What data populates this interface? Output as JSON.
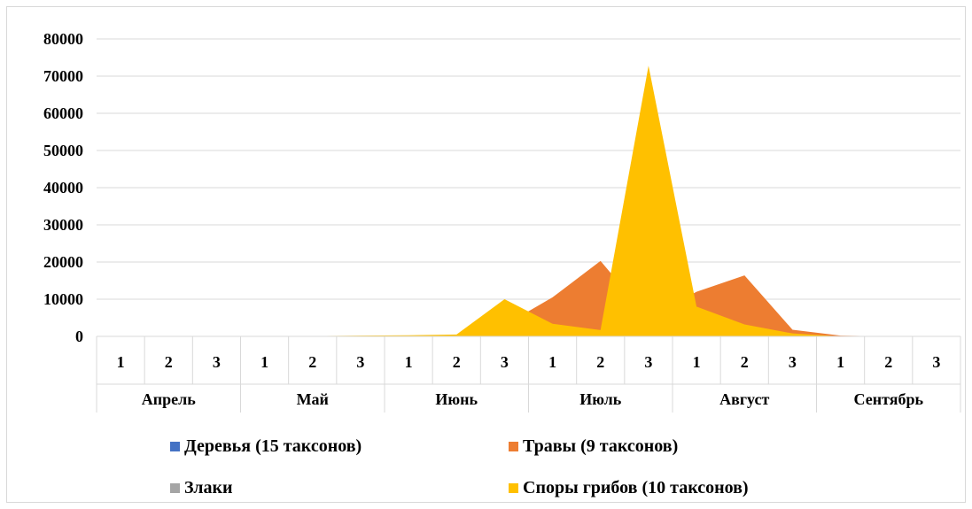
{
  "chart_data": {
    "type": "area",
    "title": "",
    "xlabel": "",
    "ylabel": "",
    "ylim": [
      0,
      80000
    ],
    "y_ticks": [
      "0",
      "10000",
      "20000",
      "30000",
      "40000",
      "50000",
      "60000",
      "70000",
      "80000"
    ],
    "categories": [
      "1",
      "2",
      "3",
      "1",
      "2",
      "3",
      "1",
      "2",
      "3",
      "1",
      "2",
      "3",
      "1",
      "2",
      "3",
      "1",
      "2",
      "3"
    ],
    "groups": [
      "Апрель",
      "Май",
      "Июнь",
      "Июль",
      "Август",
      "Сентябрь"
    ],
    "grid": true,
    "legend_position": "bottom",
    "series": [
      {
        "name": "Деревья (15 таксонов)",
        "color": "#4472C4",
        "values": [
          0,
          0,
          0,
          0,
          0,
          0,
          0,
          0,
          0,
          0,
          0,
          0,
          0,
          0,
          0,
          0,
          0,
          0
        ]
      },
      {
        "name": "Травы (9 таксонов)",
        "color": "#ED7D31",
        "values": [
          0,
          0,
          0,
          0,
          0,
          100,
          200,
          400,
          3000,
          10500,
          20300,
          5000,
          12000,
          16400,
          1800,
          200,
          0,
          0
        ]
      },
      {
        "name": "Злаки",
        "color": "#A5A5A5",
        "values": [
          0,
          0,
          0,
          0,
          0,
          0,
          0,
          0,
          0,
          0,
          0,
          0,
          0,
          0,
          0,
          0,
          0,
          0
        ]
      },
      {
        "name": "Споры грибов (10 таксонов)",
        "color": "#FFC000",
        "values": [
          0,
          0,
          0,
          0,
          100,
          200,
          300,
          500,
          10000,
          3400,
          1700,
          72800,
          8000,
          3200,
          800,
          0,
          0,
          0
        ]
      }
    ]
  }
}
